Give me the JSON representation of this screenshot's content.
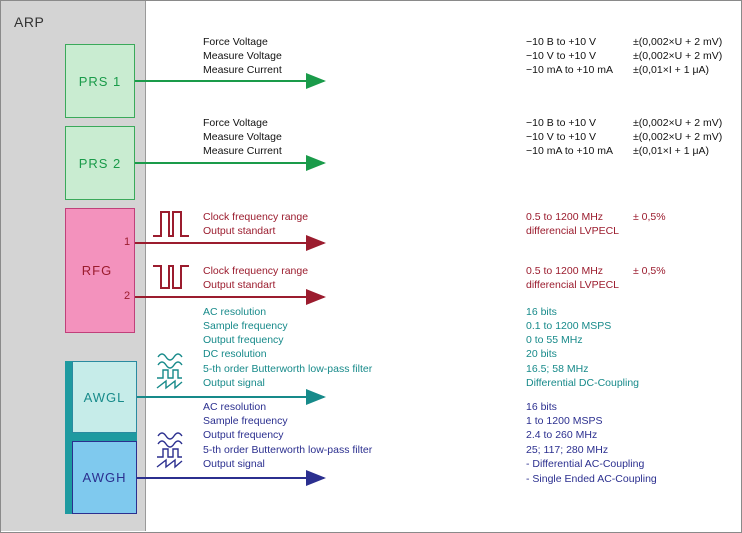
{
  "title": "ARP",
  "blocks": {
    "prs1": "PRS 1",
    "prs2": "PRS 2",
    "rfg": "RFG",
    "awgl": "AWGL",
    "awgh": "AWGH",
    "rfg_out1": "1",
    "rfg_out2": "2"
  },
  "colors": {
    "prs": "#1a9b4a",
    "rfg": "#9b1c2e",
    "awgl": "#178a8a",
    "awgh": "#2b2f8f"
  },
  "prs1": {
    "rows": [
      {
        "label": "Force Voltage",
        "range": "−10 B to +10 V",
        "accuracy": "±(0,002×U + 2 mV)"
      },
      {
        "label": "Measure Voltage",
        "range": "−10 V to +10 V",
        "accuracy": "±(0,002×U + 2 mV)"
      },
      {
        "label": "Measure Current",
        "range": "−10 mA to +10 mA",
        "accuracy": "±(0,01×I + 1 μA)"
      }
    ]
  },
  "prs2": {
    "rows": [
      {
        "label": "Force Voltage",
        "range": "−10 B to +10 V",
        "accuracy": "±(0,002×U + 2 mV)"
      },
      {
        "label": "Measure Voltage",
        "range": "−10 V to +10 V",
        "accuracy": "±(0,002×U + 2 mV)"
      },
      {
        "label": "Measure Current",
        "range": "−10 mA to +10 mA",
        "accuracy": "±(0,01×I + 1 μA)"
      }
    ]
  },
  "rfg1": {
    "rows": [
      {
        "label": "Clock frequency range",
        "value": "0.5 to 1200 MHz",
        "accuracy": "± 0,5%"
      },
      {
        "label": "Output standart",
        "value": "differencial LVPECL",
        "accuracy": ""
      }
    ]
  },
  "rfg2": {
    "rows": [
      {
        "label": "Clock frequency range",
        "value": "0.5 to 1200 MHz",
        "accuracy": "± 0,5%"
      },
      {
        "label": "Output standart",
        "value": "differencial LVPECL",
        "accuracy": ""
      }
    ]
  },
  "awgl": {
    "rows": [
      {
        "label": "AC resolution",
        "value": "16 bits"
      },
      {
        "label": "Sample frequency",
        "value": "0.1 to 1200 MSPS"
      },
      {
        "label": "Output frequency",
        "value": "0 to 55 MHz"
      },
      {
        "label": "DC resolution",
        "value": "20 bits"
      },
      {
        "label": "5-th order Butterworth low-pass  filter",
        "value": "16.5;  58 MHz"
      },
      {
        "label": "Output signal",
        "value": "Differential DC-Coupling"
      }
    ]
  },
  "awgh": {
    "rows": [
      {
        "label": "AC resolution",
        "value": "16 bits"
      },
      {
        "label": "Sample frequency",
        "value": "1 to 1200 MSPS"
      },
      {
        "label": "Output frequency",
        "value": "2.4  to 260 MHz"
      },
      {
        "label": "5-th order Butterworth low-pass  filter",
        "value": "25;  117; 280 MHz"
      },
      {
        "label": "Output signal",
        "value": "- Differential AC-Coupling"
      },
      {
        "label": "",
        "value": "- Single Ended AC-Coupling"
      }
    ]
  },
  "icons": [
    "clock-pulse-icon",
    "clock-pulse-inverted-icon",
    "waveform-icon",
    "waveform-icon"
  ]
}
